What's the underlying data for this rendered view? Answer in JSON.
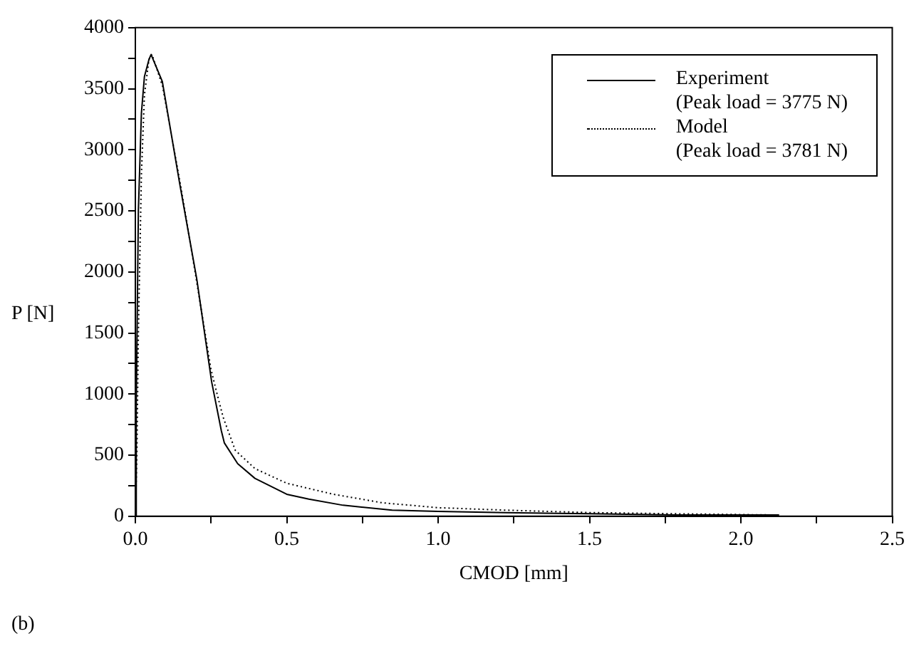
{
  "chart_data": {
    "type": "line",
    "xlabel": "CMOD [mm]",
    "ylabel": "P [N]",
    "annotations": [
      "(b)"
    ],
    "xlim": [
      0,
      2.5
    ],
    "xticks": [
      {
        "value": 0,
        "label": "0.0"
      },
      {
        "value": 0.25,
        "label": null
      },
      {
        "value": 0.5,
        "label": "0.5"
      },
      {
        "value": 0.75,
        "label": null
      },
      {
        "value": 1,
        "label": "1.0"
      },
      {
        "value": 1.25,
        "label": null
      },
      {
        "value": 1.5,
        "label": "1.5"
      },
      {
        "value": 1.75,
        "label": null
      },
      {
        "value": 2,
        "label": "2.0"
      },
      {
        "value": 2.25,
        "label": null
      },
      {
        "value": 2.5,
        "label": "2.5"
      }
    ],
    "ylim": [
      0,
      4000
    ],
    "yticks": [
      0,
      {
        "value": 250,
        "label": null
      },
      500,
      {
        "value": 750,
        "label": null
      },
      1000,
      {
        "value": 1250,
        "label": null
      },
      1500,
      {
        "value": 1750,
        "label": null
      },
      2000,
      {
        "value": 2250,
        "label": null
      },
      2500,
      {
        "value": 2750,
        "label": null
      },
      3000,
      {
        "value": 3250,
        "label": null
      },
      3500,
      {
        "value": 3750,
        "label": null
      },
      4000
    ],
    "grid": false,
    "legend": "top right",
    "marker": "none",
    "series": [
      {
        "name": "Experiment\n(Peak load = 3775 N)",
        "color": "#000000",
        "line_style": "solid",
        "x": [
          0,
          0.003,
          0.01,
          0.02,
          0.03,
          0.045,
          0.052,
          0.089,
          0.146,
          0.203,
          0.252,
          0.284,
          0.294,
          0.338,
          0.395,
          0.46,
          0.5,
          0.573,
          0.686,
          0.848,
          1.0,
          1.22,
          1.5,
          1.79,
          2.126
        ],
        "values": [
          0,
          900,
          2500,
          3300,
          3600,
          3740,
          3780,
          3560,
          2730,
          1940,
          1100,
          700,
          600,
          430,
          310,
          230,
          180,
          140,
          90,
          50,
          40,
          30,
          20,
          10,
          10
        ]
      },
      {
        "name": "Model\n(Peak load = 3781 N)",
        "color": "#000000",
        "line_style": "dotted",
        "x": [
          0,
          0.005,
          0.01,
          0.02,
          0.03,
          0.045,
          0.055,
          0.09,
          0.15,
          0.2,
          0.25,
          0.27,
          0.29,
          0.33,
          0.395,
          0.5,
          0.654,
          0.816,
          1.0,
          1.22,
          1.5,
          1.79,
          2.126
        ],
        "values": [
          0,
          500,
          1500,
          2800,
          3450,
          3740,
          3780,
          3520,
          2700,
          1960,
          1200,
          1000,
          810,
          540,
          390,
          270,
          180,
          110,
          70,
          50,
          30,
          20,
          10
        ]
      }
    ]
  }
}
